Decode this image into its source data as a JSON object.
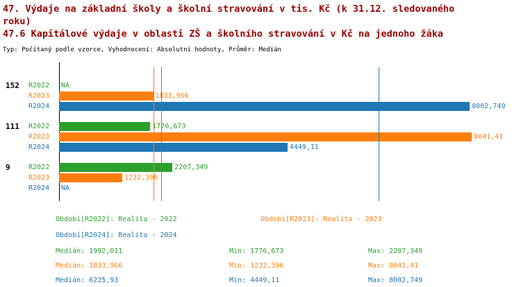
{
  "header": {
    "title_line1": "47. Výdaje na základní školy a školní stravování v tis. Kč (k 31.12. sledovaného roku)",
    "title_line2": "47.6 Kapitálové výdaje v oblasti ZŠ a školního stravování v Kč na jednoho žáka",
    "subtitle": "Typ: Počítaný podle vzorce, Vyhodnocení: Absolutní hodnoty, Průměr: Medián"
  },
  "colors": {
    "title": "#990000",
    "axis": "#000000",
    "r2022": "#2ca02c",
    "r2023": "#ff7f0e",
    "r2024": "#1f77b4"
  },
  "chart_data": {
    "type": "bar",
    "orientation": "horizontal",
    "title": "47.6 Kapitálové výdaje v oblasti ZŠ a školního stravování v Kč na jednoho žáka",
    "value_unit": "Kč na jednoho žáka",
    "axis_range": [
      0,
      9000
    ],
    "grid": false,
    "series_names": [
      "R2022",
      "R2023",
      "R2024"
    ],
    "groups": [
      {
        "label": "152",
        "bars": [
          {
            "series": "R2022",
            "value": null,
            "display": "NA"
          },
          {
            "series": "R2023",
            "value": 1833.966,
            "display": "1833,966"
          },
          {
            "series": "R2024",
            "value": 8002.749,
            "display": "8002,749"
          }
        ]
      },
      {
        "label": "111",
        "bars": [
          {
            "series": "R2022",
            "value": 1776.673,
            "display": "1776,673"
          },
          {
            "series": "R2023",
            "value": 8041.41,
            "display": "8041,41"
          },
          {
            "series": "R2024",
            "value": 4449.11,
            "display": "4449,11"
          }
        ]
      },
      {
        "label": "9",
        "bars": [
          {
            "series": "R2022",
            "value": 2207.349,
            "display": "2207,349"
          },
          {
            "series": "R2023",
            "value": 1232.396,
            "display": "1232,396"
          },
          {
            "series": "R2024",
            "value": null,
            "display": "NA"
          }
        ]
      }
    ],
    "median_lines": [
      {
        "series": "R2022",
        "value": 1992.011
      },
      {
        "series": "R2023",
        "value": 1833.966
      },
      {
        "series": "R2024",
        "value": 6225.93
      }
    ]
  },
  "legend": [
    {
      "series": "R2022",
      "label": "Období[R2022]: Realita - 2022"
    },
    {
      "series": "R2023",
      "label": "Období[R2023]: Realita - 2023"
    },
    {
      "series": "R2024",
      "label": "Období[R2024]: Realita - 2024"
    }
  ],
  "stats": [
    {
      "series": "R2022",
      "median": "Medián: 1992,011",
      "min": "Min: 1776,673",
      "max": "Max: 2207,349"
    },
    {
      "series": "R2023",
      "median": "Medián: 1833,966",
      "min": "Min: 1232,396",
      "max": "Max: 8041,41"
    },
    {
      "series": "R2024",
      "median": "Medián: 6225,93",
      "min": "Min: 4449,11",
      "max": "Max: 8002,749"
    }
  ]
}
